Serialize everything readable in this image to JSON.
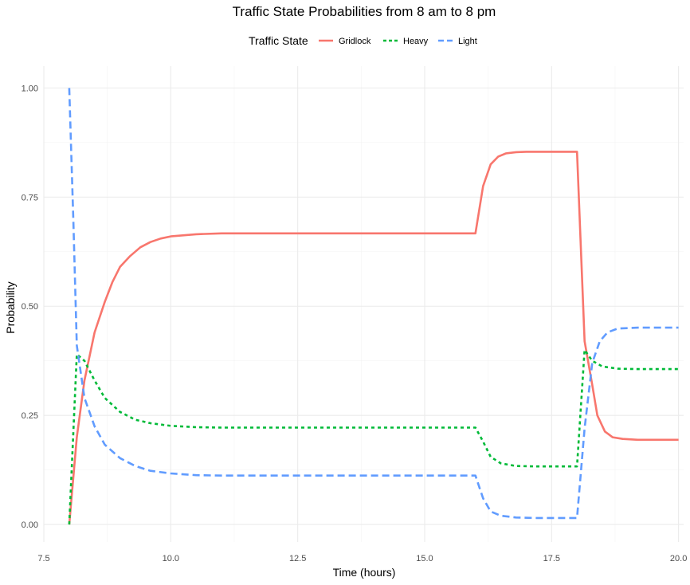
{
  "chart_data": {
    "type": "line",
    "title": "Traffic State Probabilities from 8 am to 8 pm",
    "xlabel": "Time (hours)",
    "ylabel": "Probability",
    "xlim": [
      7.5,
      20.1
    ],
    "ylim": [
      -0.04,
      1.05
    ],
    "x_ticks": [
      7.5,
      10.0,
      12.5,
      15.0,
      17.5,
      20.0
    ],
    "x_tick_labels": [
      "7.5",
      "10.0",
      "12.5",
      "15.0",
      "17.5",
      "20.0"
    ],
    "y_ticks": [
      0.0,
      0.25,
      0.5,
      0.75,
      1.0
    ],
    "y_tick_labels": [
      "0.00",
      "0.25",
      "0.50",
      "0.75",
      "1.00"
    ],
    "grid": true,
    "legend": {
      "title": "Traffic State",
      "position": "top"
    },
    "series": [
      {
        "name": "Gridlock",
        "color": "#F8766D",
        "dash": "solid",
        "points": [
          [
            8.0,
            0.0
          ],
          [
            8.15,
            0.2
          ],
          [
            8.3,
            0.33
          ],
          [
            8.5,
            0.44
          ],
          [
            8.7,
            0.51
          ],
          [
            8.85,
            0.555
          ],
          [
            9.0,
            0.59
          ],
          [
            9.2,
            0.615
          ],
          [
            9.4,
            0.635
          ],
          [
            9.6,
            0.647
          ],
          [
            9.8,
            0.655
          ],
          [
            10.0,
            0.66
          ],
          [
            10.5,
            0.665
          ],
          [
            11.0,
            0.667
          ],
          [
            12.0,
            0.667
          ],
          [
            14.0,
            0.667
          ],
          [
            16.0,
            0.667
          ],
          [
            16.15,
            0.775
          ],
          [
            16.3,
            0.825
          ],
          [
            16.45,
            0.843
          ],
          [
            16.6,
            0.85
          ],
          [
            16.8,
            0.853
          ],
          [
            17.0,
            0.854
          ],
          [
            17.5,
            0.854
          ],
          [
            18.0,
            0.854
          ],
          [
            18.15,
            0.42
          ],
          [
            18.3,
            0.32
          ],
          [
            18.4,
            0.25
          ],
          [
            18.55,
            0.213
          ],
          [
            18.7,
            0.2
          ],
          [
            18.9,
            0.196
          ],
          [
            19.2,
            0.194
          ],
          [
            19.6,
            0.194
          ],
          [
            20.0,
            0.194
          ]
        ]
      },
      {
        "name": "Heavy",
        "color": "#00BA38",
        "dash": "dotted",
        "points": [
          [
            8.0,
            0.0
          ],
          [
            8.15,
            0.39
          ],
          [
            8.3,
            0.375
          ],
          [
            8.5,
            0.33
          ],
          [
            8.7,
            0.29
          ],
          [
            9.0,
            0.258
          ],
          [
            9.3,
            0.24
          ],
          [
            9.6,
            0.232
          ],
          [
            10.0,
            0.226
          ],
          [
            10.5,
            0.223
          ],
          [
            11.0,
            0.222
          ],
          [
            13.0,
            0.222
          ],
          [
            15.0,
            0.222
          ],
          [
            16.0,
            0.222
          ],
          [
            16.15,
            0.19
          ],
          [
            16.3,
            0.155
          ],
          [
            16.5,
            0.14
          ],
          [
            16.8,
            0.134
          ],
          [
            17.2,
            0.133
          ],
          [
            18.0,
            0.133
          ],
          [
            18.15,
            0.4
          ],
          [
            18.3,
            0.375
          ],
          [
            18.5,
            0.362
          ],
          [
            18.8,
            0.357
          ],
          [
            19.2,
            0.356
          ],
          [
            20.0,
            0.356
          ]
        ]
      },
      {
        "name": "Light",
        "color": "#619CFF",
        "dash": "dashed",
        "points": [
          [
            8.0,
            1.0
          ],
          [
            8.08,
            0.7
          ],
          [
            8.15,
            0.41
          ],
          [
            8.3,
            0.29
          ],
          [
            8.5,
            0.225
          ],
          [
            8.7,
            0.183
          ],
          [
            9.0,
            0.152
          ],
          [
            9.3,
            0.134
          ],
          [
            9.6,
            0.123
          ],
          [
            10.0,
            0.117
          ],
          [
            10.5,
            0.113
          ],
          [
            11.0,
            0.112
          ],
          [
            13.0,
            0.112
          ],
          [
            15.0,
            0.112
          ],
          [
            16.0,
            0.112
          ],
          [
            16.15,
            0.06
          ],
          [
            16.3,
            0.03
          ],
          [
            16.5,
            0.02
          ],
          [
            16.8,
            0.016
          ],
          [
            17.2,
            0.015
          ],
          [
            18.0,
            0.015
          ],
          [
            18.15,
            0.22
          ],
          [
            18.3,
            0.37
          ],
          [
            18.45,
            0.42
          ],
          [
            18.6,
            0.44
          ],
          [
            18.8,
            0.449
          ],
          [
            19.2,
            0.451
          ],
          [
            20.0,
            0.451
          ]
        ]
      }
    ]
  }
}
